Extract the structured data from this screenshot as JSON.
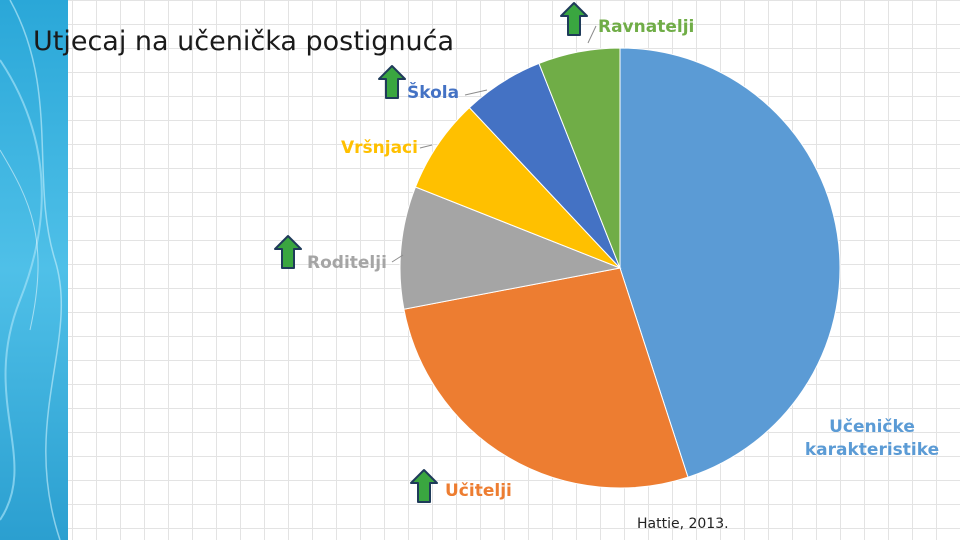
{
  "slide": {
    "title": "Utjecaj na učenička postignuća",
    "source": "Hattie, 2013."
  },
  "colors": {
    "accent_arrow": "#3aa640",
    "arrow_outline": "#1f3b5a"
  },
  "chart_data": {
    "type": "pie",
    "title": "",
    "slices": [
      {
        "label": "Učeničke karakteristike",
        "label_lines": [
          "Učeničke",
          "karakteristike"
        ],
        "value": 45,
        "color": "#5b9bd5",
        "arrow": false
      },
      {
        "label": "Učitelji",
        "label_lines": [
          "Učitelji"
        ],
        "value": 27,
        "color": "#ed7d31",
        "arrow": true
      },
      {
        "label": "Roditelji",
        "label_lines": [
          "Roditelji"
        ],
        "value": 9,
        "color": "#a5a5a5",
        "arrow": true
      },
      {
        "label": "Vršnjaci",
        "label_lines": [
          "Vršnjaci"
        ],
        "value": 7,
        "color": "#ffc000",
        "arrow": false
      },
      {
        "label": "Škola",
        "label_lines": [
          "Škola"
        ],
        "value": 6,
        "color": "#4472c4",
        "arrow": true
      },
      {
        "label": "Ravnatelji",
        "label_lines": [
          "Ravnatelji"
        ],
        "value": 6,
        "color": "#70ad47",
        "arrow": true
      }
    ]
  }
}
